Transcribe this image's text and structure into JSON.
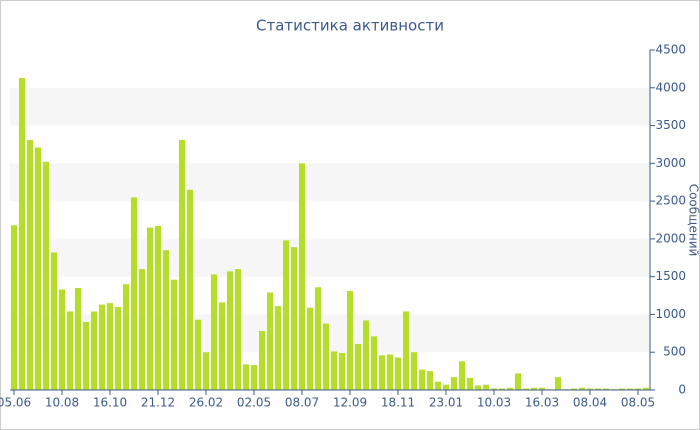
{
  "chart_data": {
    "type": "bar",
    "title": "Статистика активности",
    "y_label": "Сообщений",
    "categories": [
      "05.06",
      null,
      null,
      null,
      null,
      null,
      "10.08",
      null,
      null,
      null,
      null,
      null,
      "16.10",
      null,
      null,
      null,
      null,
      null,
      "21.12",
      null,
      null,
      null,
      null,
      null,
      "26.02",
      null,
      null,
      null,
      null,
      null,
      "02.05",
      null,
      null,
      null,
      null,
      null,
      "08.07",
      null,
      null,
      null,
      null,
      null,
      "12.09",
      null,
      null,
      null,
      null,
      null,
      "18.11",
      null,
      null,
      null,
      null,
      null,
      "23.01",
      null,
      null,
      null,
      null,
      null,
      "10.03",
      null,
      null,
      null,
      null,
      null,
      "16.03",
      null,
      null,
      null,
      null,
      null,
      "08.04",
      null,
      null,
      null,
      null,
      null,
      "08.05",
      null
    ],
    "values": [
      2180,
      4130,
      3310,
      3210,
      3020,
      1820,
      1330,
      1040,
      1350,
      900,
      1040,
      1130,
      1150,
      1100,
      1400,
      2550,
      1600,
      2150,
      2170,
      1850,
      1460,
      3310,
      2650,
      930,
      500,
      1530,
      1160,
      1570,
      1600,
      340,
      330,
      780,
      1290,
      1110,
      1980,
      1890,
      3000,
      1090,
      1360,
      880,
      510,
      490,
      1310,
      610,
      920,
      710,
      460,
      470,
      430,
      1040,
      500,
      270,
      250,
      110,
      70,
      170,
      380,
      160,
      60,
      70,
      20,
      20,
      30,
      220,
      20,
      30,
      30,
      10,
      170,
      10,
      20,
      30,
      20,
      20,
      20,
      10,
      20,
      20,
      20,
      30
    ],
    "color": "#b5dd2a",
    "ylim": [
      0,
      4500
    ],
    "yticks": [
      0,
      500,
      1000,
      1500,
      2000,
      2500,
      3000,
      3500,
      4000,
      4500
    ],
    "grid": true
  }
}
